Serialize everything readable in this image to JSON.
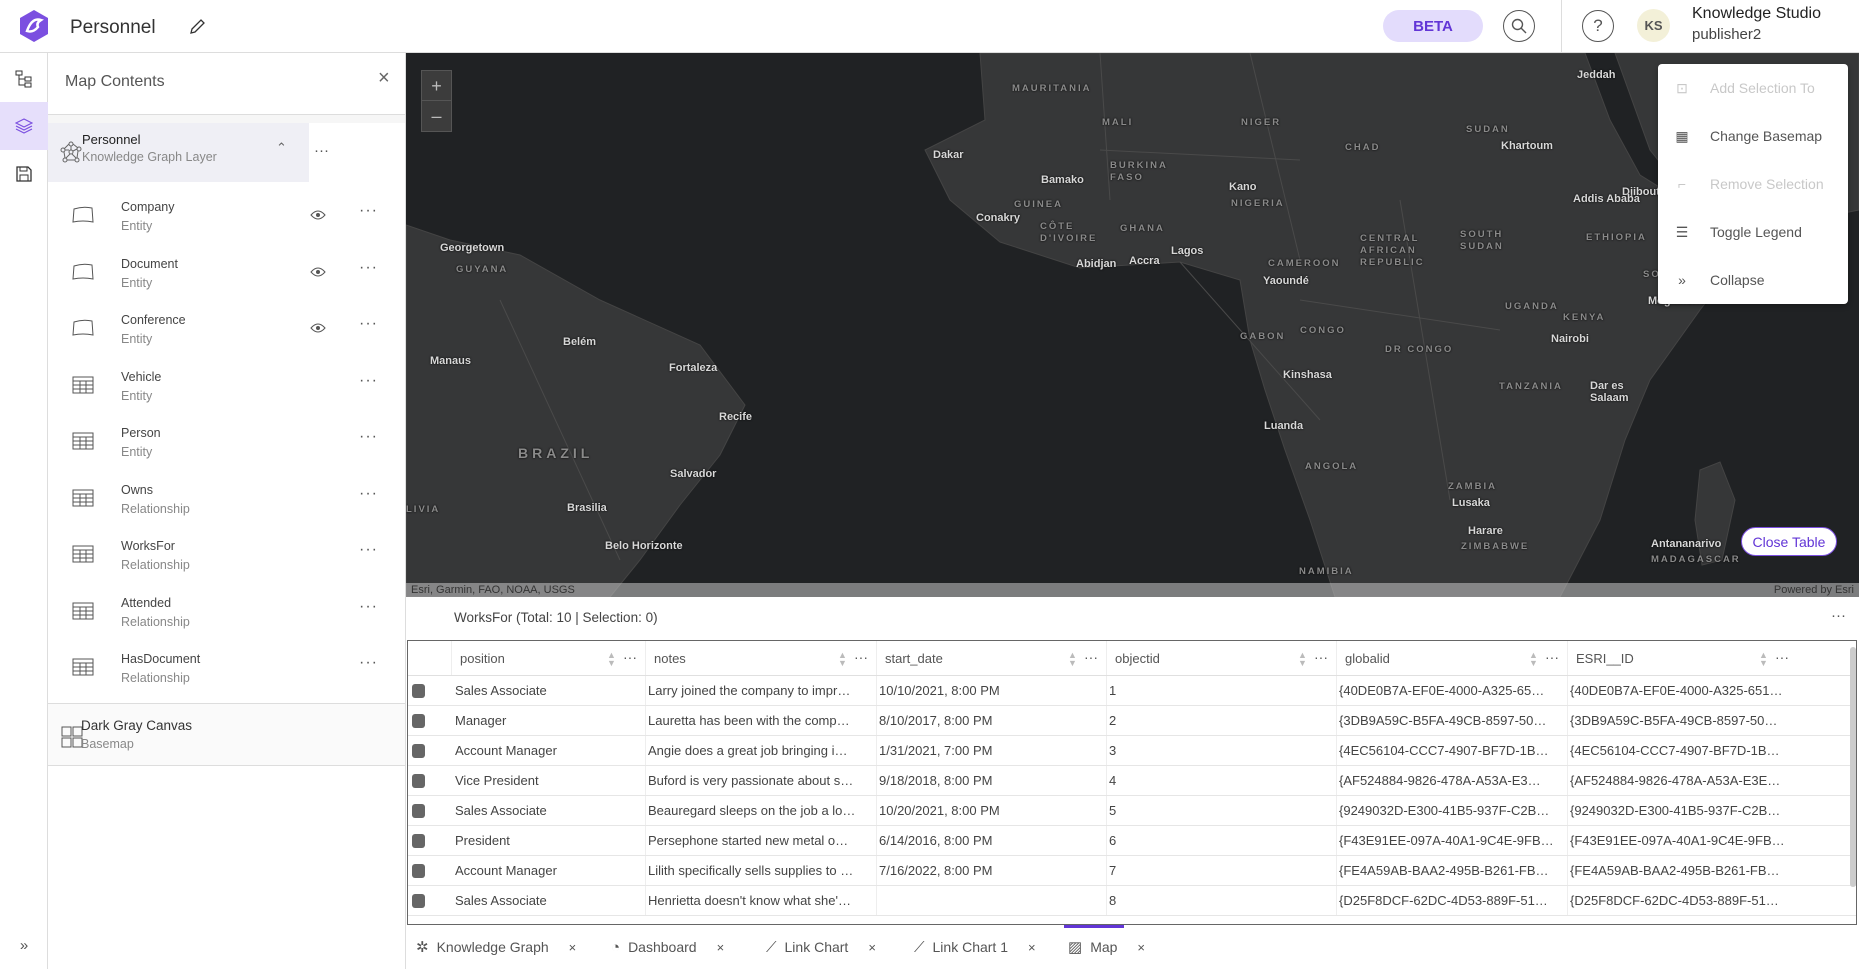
{
  "header": {
    "title": "Personnel",
    "beta": "BETA",
    "avatar_initials": "KS",
    "user_name": "Knowledge Studio",
    "user_role": "publisher2",
    "accent": "#6235d6"
  },
  "panel": {
    "title": "Map Contents",
    "layer": {
      "name": "Personnel",
      "type": "Knowledge Graph Layer"
    },
    "items": [
      {
        "name": "Company",
        "type": "Entity",
        "icon": "polygon-icon",
        "visible": true
      },
      {
        "name": "Document",
        "type": "Entity",
        "icon": "polygon-icon",
        "visible": true
      },
      {
        "name": "Conference",
        "type": "Entity",
        "icon": "polygon-icon",
        "visible": true
      },
      {
        "name": "Vehicle",
        "type": "Entity",
        "icon": "table-icon",
        "visible": false
      },
      {
        "name": "Person",
        "type": "Entity",
        "icon": "table-icon",
        "visible": false
      },
      {
        "name": "Owns",
        "type": "Relationship",
        "icon": "table-icon",
        "visible": false
      },
      {
        "name": "WorksFor",
        "type": "Relationship",
        "icon": "table-icon",
        "visible": false
      },
      {
        "name": "Attended",
        "type": "Relationship",
        "icon": "table-icon",
        "visible": false
      },
      {
        "name": "HasDocument",
        "type": "Relationship",
        "icon": "table-icon",
        "visible": false
      }
    ],
    "basemap": {
      "name": "Dark Gray Canvas",
      "type": "Basemap"
    }
  },
  "map": {
    "attribution": "Esri, Garmin, FAO, NOAA, USGS",
    "powered": "Powered by Esri",
    "close_table": "Close Table",
    "zoom_in": "+",
    "zoom_out": "–",
    "labels": [
      {
        "text": "MAURITANIA",
        "kind": "country"
      },
      {
        "text": "MALI",
        "kind": "country"
      },
      {
        "text": "NIGER",
        "kind": "country"
      },
      {
        "text": "CHAD",
        "kind": "country"
      },
      {
        "text": "SUDAN",
        "kind": "country"
      },
      {
        "text": "Khartoum",
        "kind": "city"
      },
      {
        "text": "Jeddah",
        "kind": "city"
      },
      {
        "text": "Djibouti",
        "kind": "city"
      },
      {
        "text": "Addis Ababa",
        "kind": "city"
      },
      {
        "text": "ETHIOPIA",
        "kind": "country"
      },
      {
        "text": "Dakar",
        "kind": "city"
      },
      {
        "text": "Bamako",
        "kind": "city"
      },
      {
        "text": "BURKINA FASO",
        "kind": "country"
      },
      {
        "text": "GUINEA",
        "kind": "country"
      },
      {
        "text": "Conakry",
        "kind": "city"
      },
      {
        "text": "CÔTE D'IVOIRE",
        "kind": "country"
      },
      {
        "text": "GHANA",
        "kind": "country"
      },
      {
        "text": "Abidjan",
        "kind": "city"
      },
      {
        "text": "Accra",
        "kind": "city"
      },
      {
        "text": "Lagos",
        "kind": "city"
      },
      {
        "text": "Kano",
        "kind": "city"
      },
      {
        "text": "NIGERIA",
        "kind": "country"
      },
      {
        "text": "CAMEROON",
        "kind": "country"
      },
      {
        "text": "Yaoundé",
        "kind": "city"
      },
      {
        "text": "CENTRAL AFRICAN REPUBLIC",
        "kind": "country"
      },
      {
        "text": "SOUTH SUDAN",
        "kind": "country"
      },
      {
        "text": "UGANDA",
        "kind": "country"
      },
      {
        "text": "KENYA",
        "kind": "country"
      },
      {
        "text": "Nairobi",
        "kind": "city"
      },
      {
        "text": "Mogadishu",
        "kind": "city"
      },
      {
        "text": "SOM",
        "kind": "country"
      },
      {
        "text": "Georgetown",
        "kind": "city"
      },
      {
        "text": "GUYANA",
        "kind": "country"
      },
      {
        "text": "Manaus",
        "kind": "city"
      },
      {
        "text": "Belém",
        "kind": "city"
      },
      {
        "text": "Fortaleza",
        "kind": "city"
      },
      {
        "text": "Recife",
        "kind": "city"
      },
      {
        "text": "BRAZIL",
        "kind": "big"
      },
      {
        "text": "Salvador",
        "kind": "city"
      },
      {
        "text": "Brasilia",
        "kind": "city"
      },
      {
        "text": "Belo Horizonte",
        "kind": "city"
      },
      {
        "text": "LIVIA",
        "kind": "country"
      },
      {
        "text": "GABON",
        "kind": "country"
      },
      {
        "text": "CONGO",
        "kind": "country"
      },
      {
        "text": "DR CONGO",
        "kind": "country"
      },
      {
        "text": "Kinshasa",
        "kind": "city"
      },
      {
        "text": "Luanda",
        "kind": "city"
      },
      {
        "text": "ANGOLA",
        "kind": "country"
      },
      {
        "text": "TANZANIA",
        "kind": "country"
      },
      {
        "text": "Dar es Salaam",
        "kind": "city"
      },
      {
        "text": "ZAMBIA",
        "kind": "country"
      },
      {
        "text": "Lusaka",
        "kind": "city"
      },
      {
        "text": "Harare",
        "kind": "city"
      },
      {
        "text": "ZIMBABWE",
        "kind": "country"
      },
      {
        "text": "NAMIBIA",
        "kind": "country"
      },
      {
        "text": "Antananarivo",
        "kind": "city"
      },
      {
        "text": "MADAGASCAR",
        "kind": "country"
      }
    ]
  },
  "menu": [
    {
      "label": "Add Selection To",
      "icon": "add-selection-icon",
      "disabled": true
    },
    {
      "label": "Change Basemap",
      "icon": "basemap-icon",
      "disabled": false
    },
    {
      "label": "Remove Selection",
      "icon": "remove-selection-icon",
      "disabled": true
    },
    {
      "label": "Toggle Legend",
      "icon": "legend-icon",
      "disabled": false
    },
    {
      "label": "Collapse",
      "icon": "collapse-icon",
      "disabled": false
    }
  ],
  "table": {
    "title": "WorksFor (Total: 10 | Selection: 0)",
    "columns": [
      "position",
      "notes",
      "start_date",
      "objectid",
      "globalid",
      "ESRI__ID"
    ],
    "rows": [
      [
        "Sales Associate",
        "Larry joined the company to impr…",
        "10/10/2021, 8:00 PM",
        "1",
        "{40DE0B7A-EF0E-4000-A325-65…",
        "{40DE0B7A-EF0E-4000-A325-651…"
      ],
      [
        "Manager",
        "Lauretta has been with the comp…",
        "8/10/2017, 8:00 PM",
        "2",
        "{3DB9A59C-B5FA-49CB-8597-50…",
        "{3DB9A59C-B5FA-49CB-8597-50…"
      ],
      [
        "Account Manager",
        "Angie does a great job bringing i…",
        "1/31/2021, 7:00 PM",
        "3",
        "{4EC56104-CCC7-4907-BF7D-1B…",
        "{4EC56104-CCC7-4907-BF7D-1B…"
      ],
      [
        "Vice President",
        "Buford is very passionate about s…",
        "9/18/2018, 8:00 PM",
        "4",
        "{AF524884-9826-478A-A53A-E3…",
        "{AF524884-9826-478A-A53A-E3E…"
      ],
      [
        "Sales Associate",
        "Beauregard sleeps on the job a lo…",
        "10/20/2021, 8:00 PM",
        "5",
        "{9249032D-E300-41B5-937F-C2B…",
        "{9249032D-E300-41B5-937F-C2B…"
      ],
      [
        "President",
        "Persephone started new metal o…",
        "6/14/2016, 8:00 PM",
        "6",
        "{F43E91EE-097A-40A1-9C4E-9FB…",
        "{F43E91EE-097A-40A1-9C4E-9FB…"
      ],
      [
        "Account Manager",
        "Lilith specifically sells supplies to …",
        "7/16/2022, 8:00 PM",
        "7",
        "{FE4A59AB-BAA2-495B-B261-FB…",
        "{FE4A59AB-BAA2-495B-B261-FB…"
      ],
      [
        "Sales Associate",
        "Henrietta doesn't know what she'…",
        "",
        "8",
        "{D25F8DCF-62DC-4D53-889F-51…",
        "{D25F8DCF-62DC-4D53-889F-51…"
      ]
    ]
  },
  "tabs": [
    {
      "label": "Knowledge Graph",
      "icon": "knowledge-graph-icon",
      "active": false
    },
    {
      "label": "Dashboard",
      "icon": "dashboard-icon",
      "active": false
    },
    {
      "label": "Link Chart",
      "icon": "link-chart-icon",
      "active": false
    },
    {
      "label": "Link Chart 1",
      "icon": "link-chart-icon",
      "active": false
    },
    {
      "label": "Map",
      "icon": "map-icon",
      "active": true
    }
  ],
  "close_glyph": "×",
  "more_glyph": "···"
}
